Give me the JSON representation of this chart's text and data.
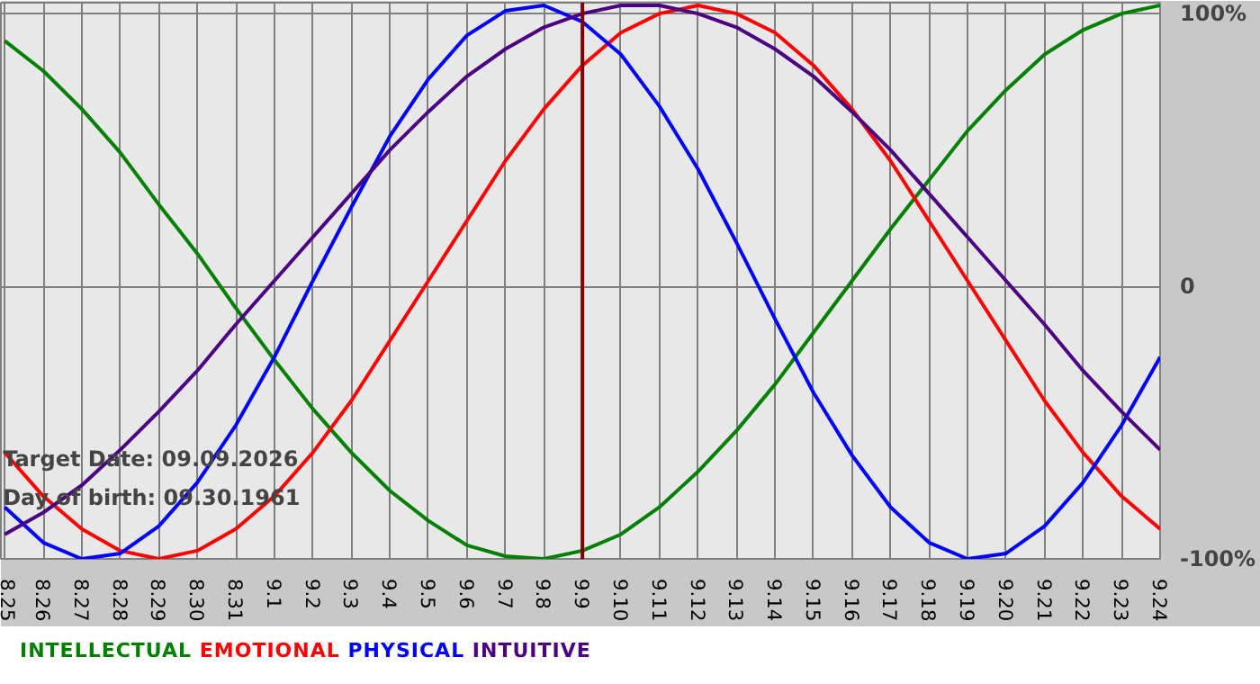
{
  "chart_data": {
    "type": "line",
    "categories": [
      "8.25",
      "8.26",
      "8.27",
      "8.28",
      "8.29",
      "8.30",
      "8.31",
      "9.1",
      "9.2",
      "9.3",
      "9.4",
      "9.5",
      "9.6",
      "9.7",
      "9.8",
      "9.9",
      "9.10",
      "9.11",
      "9.12",
      "9.13",
      "9.14",
      "9.15",
      "9.16",
      "9.17",
      "9.18",
      "9.19",
      "9.20",
      "9.21",
      "9.22",
      "9.23",
      "9.24"
    ],
    "series": [
      {
        "name": "INTELLECTUAL",
        "color": "#008000",
        "values": [
          90,
          79,
          65,
          49,
          30,
          12,
          -8,
          -27,
          -45,
          -61,
          -75,
          -86,
          -95,
          -99,
          -100,
          -97,
          -91,
          -81,
          -68,
          -53,
          -36,
          -17,
          2,
          21,
          39,
          57,
          72,
          85,
          94,
          100,
          103
        ]
      },
      {
        "name": "EMOTIONAL",
        "color": "#ff0000",
        "values": [
          -61,
          -77,
          -89,
          -97,
          -100,
          -97,
          -89,
          -77,
          -61,
          -42,
          -20,
          2,
          24,
          46,
          65,
          81,
          93,
          100,
          103,
          100,
          93,
          81,
          65,
          46,
          24,
          2,
          -20,
          -42,
          -61,
          -77,
          -89
        ]
      },
      {
        "name": "PHYSICAL",
        "color": "#0000ff",
        "values": [
          -81,
          -94,
          -100,
          -98,
          -88,
          -72,
          -51,
          -26,
          2,
          29,
          55,
          76,
          92,
          101,
          103,
          97,
          85,
          66,
          43,
          16,
          -12,
          -39,
          -62,
          -81,
          -94,
          -100,
          -98,
          -88,
          -72,
          -51,
          -26
        ]
      },
      {
        "name": "INTUITIVE",
        "color": "#4b0082",
        "values": [
          -91,
          -83,
          -73,
          -60,
          -46,
          -31,
          -14,
          2,
          18,
          34,
          50,
          64,
          77,
          87,
          95,
          100,
          103,
          103,
          100,
          95,
          87,
          77,
          64,
          50,
          34,
          18,
          2,
          -14,
          -31,
          -46,
          -60
        ]
      }
    ],
    "ylim": [
      -100,
      104
    ],
    "yticks": [
      {
        "value": -100,
        "label": "-100%"
      },
      0,
      {
        "value": 100,
        "label": "100%"
      }
    ],
    "ref_lines": [
      {
        "axis": "x",
        "value": "9.9",
        "label": null,
        "color": "#800000"
      }
    ],
    "annotations": [
      "Target Date: 09.09.2026",
      "Day of birth: 09.30.1961"
    ],
    "grid": true,
    "legend": "bottom",
    "marker": "none",
    "line_style": "solid"
  }
}
